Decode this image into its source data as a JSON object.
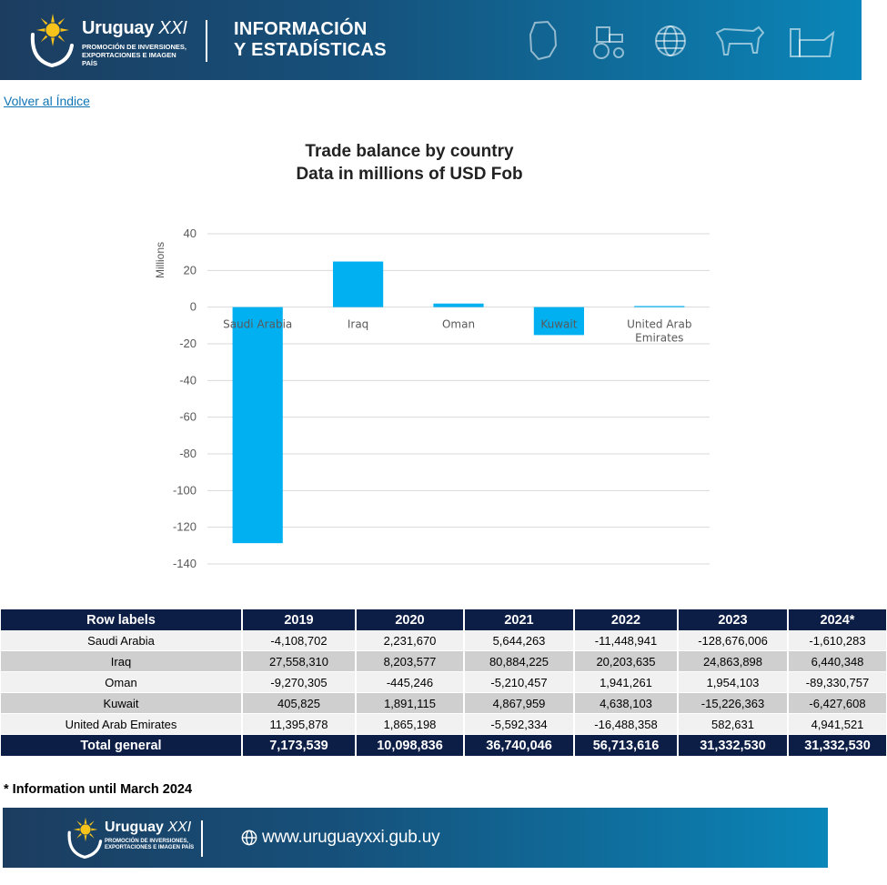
{
  "header": {
    "brand_name": "Uruguay",
    "brand_suffix": "XXI",
    "brand_sub": "PROMOCIÓN DE INVERSIONES, EXPORTACIONES E IMAGEN PAÍS",
    "section_line1": "INFORMACIÓN",
    "section_line2": "Y ESTADÍSTICAS",
    "icons": [
      "uruguay-map-icon",
      "tractor-icon",
      "globe-icon",
      "cow-icon",
      "factory-icon"
    ]
  },
  "back_link": "Volver al Índice",
  "chart_data": {
    "type": "bar",
    "title": "Trade balance by country",
    "subtitle": "Data in millions of USD Fob",
    "ylabel": "Millions",
    "xlabel": "",
    "categories": [
      "Saudi Arabia",
      "Iraq",
      "Oman",
      "Kuwait",
      "United Arab Emirates"
    ],
    "values": [
      -128.676006,
      24.863898,
      1.954103,
      -15.226363,
      0.582631
    ],
    "ylim": [
      -140,
      40
    ],
    "yticks": [
      40,
      20,
      0,
      -20,
      -40,
      -60,
      -80,
      -100,
      -120,
      -140
    ],
    "grid": true,
    "legend": "none",
    "bar_color": "#00b0f0"
  },
  "table": {
    "columns": [
      "Row labels",
      "2019",
      "2020",
      "2021",
      "2022",
      "2023",
      "2024*"
    ],
    "rows": [
      [
        "Saudi Arabia",
        "-4,108,702",
        "2,231,670",
        "5,644,263",
        "-11,448,941",
        "-128,676,006",
        "-1,610,283"
      ],
      [
        "Iraq",
        "27,558,310",
        "8,203,577",
        "80,884,225",
        "20,203,635",
        "24,863,898",
        "6,440,348"
      ],
      [
        "Oman",
        "-9,270,305",
        "-445,246",
        "-5,210,457",
        "1,941,261",
        "1,954,103",
        "-89,330,757"
      ],
      [
        "Kuwait",
        "405,825",
        "1,891,115",
        "4,867,959",
        "4,638,103",
        "-15,226,363",
        "-6,427,608"
      ],
      [
        "United Arab Emirates",
        "11,395,878",
        "1,865,198",
        "-5,592,334",
        "-16,488,358",
        "582,631",
        "4,941,521"
      ]
    ],
    "total": [
      "Total general",
      "7,173,539",
      "10,098,836",
      "36,740,046",
      "56,713,616",
      "31,332,530",
      "31,332,530"
    ]
  },
  "footnote": "* Information until March 2024",
  "footer": {
    "brand_name": "Uruguay",
    "brand_suffix": "XXI",
    "brand_sub": "PROMOCIÓN DE INVERSIONES, EXPORTACIONES E IMAGEN PAÍS",
    "url": "www.uruguayxxi.gub.uy"
  }
}
